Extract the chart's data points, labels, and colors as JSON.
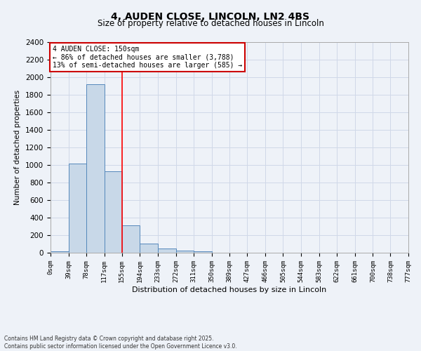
{
  "title": "4, AUDEN CLOSE, LINCOLN, LN2 4BS",
  "subtitle": "Size of property relative to detached houses in Lincoln",
  "xlabel": "Distribution of detached houses by size in Lincoln",
  "ylabel": "Number of detached properties",
  "bin_edges": [
    0,
    39,
    78,
    117,
    155,
    194,
    233,
    272,
    311,
    350,
    389,
    427,
    466,
    505,
    544,
    583,
    622,
    661,
    700,
    738,
    777
  ],
  "bin_heights": [
    20,
    1020,
    1920,
    930,
    315,
    105,
    45,
    25,
    20,
    0,
    0,
    0,
    0,
    0,
    0,
    0,
    0,
    0,
    0,
    0
  ],
  "bar_color": "#c8d8e8",
  "bar_edge_color": "#5588bb",
  "red_line_x": 155,
  "ylim": [
    0,
    2400
  ],
  "yticks": [
    0,
    200,
    400,
    600,
    800,
    1000,
    1200,
    1400,
    1600,
    1800,
    2000,
    2200,
    2400
  ],
  "annotation_title": "4 AUDEN CLOSE: 150sqm",
  "annotation_line1": "← 86% of detached houses are smaller (3,788)",
  "annotation_line2": "13% of semi-detached houses are larger (585) →",
  "annotation_box_color": "#ffffff",
  "annotation_box_edge": "#cc0000",
  "grid_color": "#d0d8e8",
  "background_color": "#eef2f8",
  "footer_line1": "Contains HM Land Registry data © Crown copyright and database right 2025.",
  "footer_line2": "Contains public sector information licensed under the Open Government Licence v3.0.",
  "tick_labels": [
    "0sqm",
    "39sqm",
    "78sqm",
    "117sqm",
    "155sqm",
    "194sqm",
    "233sqm",
    "272sqm",
    "311sqm",
    "350sqm",
    "389sqm",
    "427sqm",
    "466sqm",
    "505sqm",
    "544sqm",
    "583sqm",
    "622sqm",
    "661sqm",
    "700sqm",
    "738sqm",
    "777sqm"
  ]
}
